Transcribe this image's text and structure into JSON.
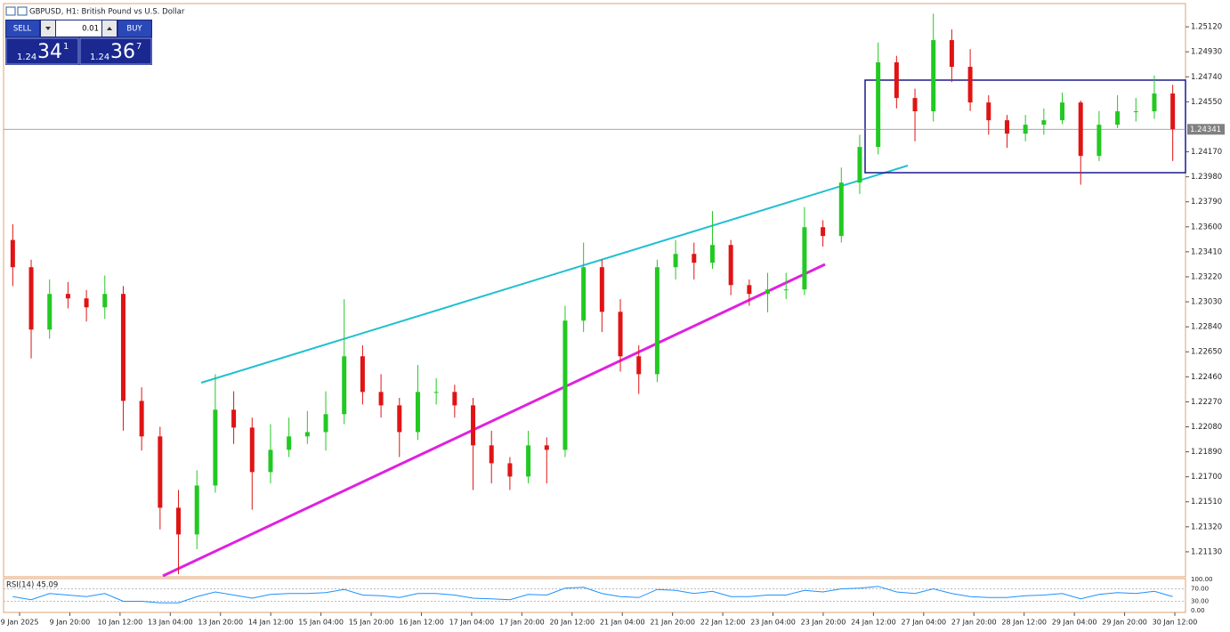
{
  "title": "GBPUSD, H1:  British Pound vs U.S. Dollar",
  "trade_panel": {
    "sell_label": "SELL",
    "buy_label": "BUY",
    "lot": "0.01",
    "sell_price": {
      "big": "1.24",
      "pips": "34",
      "frac": "1"
    },
    "buy_price": {
      "big": "1.24",
      "pips": "36",
      "frac": "7"
    }
  },
  "chart_data": {
    "type": "candlestick",
    "up_color": "#22c922",
    "down_color": "#e01414",
    "open": [
      1.235,
      1.23293,
      1.22819,
      1.2309,
      1.23056,
      1.22988,
      1.2309,
      1.22277,
      1.22007,
      1.21465,
      1.21262,
      1.21634,
      1.2221,
      1.22074,
      1.21736,
      1.21905,
      1.22007,
      1.2204,
      1.22176,
      1.22616,
      1.22345,
      1.22243,
      1.2204,
      1.22345,
      1.22345,
      1.22243,
      1.21939,
      1.21803,
      1.21702,
      1.21939,
      1.21905,
      1.22887,
      1.23293,
      1.22954,
      1.22616,
      1.2248,
      1.23293,
      1.23394,
      1.23327,
      1.23462,
      1.23157,
      1.2309,
      1.23124,
      1.23124,
      1.23597,
      1.2353,
      1.23936,
      1.24207,
      1.2485,
      1.24579,
      1.24478,
      1.25019,
      1.24816,
      1.24545,
      1.2441,
      1.24308,
      1.24376,
      1.2441,
      1.24545,
      1.24139,
      1.24376,
      1.24478,
      1.24478,
      1.24613
    ],
    "high": [
      1.2362,
      1.2335,
      1.232,
      1.2318,
      1.2312,
      1.2323,
      1.2315,
      1.2238,
      1.2208,
      1.216,
      1.2175,
      1.2248,
      1.2235,
      1.2215,
      1.221,
      1.2215,
      1.222,
      1.2235,
      1.2305,
      1.227,
      1.2248,
      1.223,
      1.2255,
      1.2245,
      1.224,
      1.223,
      1.2205,
      1.2185,
      1.2205,
      1.22,
      1.23,
      1.2348,
      1.2335,
      1.2305,
      1.227,
      1.2335,
      1.235,
      1.2348,
      1.2372,
      1.235,
      1.232,
      1.2325,
      1.2325,
      1.2375,
      1.2365,
      1.2405,
      1.243,
      1.25,
      1.249,
      1.2465,
      1.2522,
      1.251,
      1.2495,
      1.246,
      1.2445,
      1.2445,
      1.245,
      1.2462,
      1.2456,
      1.2448,
      1.246,
      1.2458,
      1.2475,
      1.2468
    ],
    "low": [
      1.2315,
      1.226,
      1.2275,
      1.2298,
      1.2288,
      1.229,
      1.2205,
      1.219,
      1.213,
      1.2096,
      1.2115,
      1.2158,
      1.2195,
      1.2145,
      1.2165,
      1.2185,
      1.2195,
      1.219,
      1.221,
      1.2225,
      1.2215,
      1.2185,
      1.2198,
      1.2225,
      1.2215,
      1.216,
      1.2165,
      1.216,
      1.2165,
      1.2165,
      1.2185,
      1.228,
      1.228,
      1.225,
      1.2233,
      1.2242,
      1.232,
      1.232,
      1.2328,
      1.2308,
      1.23,
      1.2295,
      1.2305,
      1.2308,
      1.2345,
      1.2348,
      1.2385,
      1.2415,
      1.245,
      1.2425,
      1.244,
      1.247,
      1.2448,
      1.243,
      1.242,
      1.2425,
      1.243,
      1.2438,
      1.2392,
      1.241,
      1.2435,
      1.244,
      1.2442,
      1.241
    ],
    "close": [
      1.23293,
      1.22819,
      1.2309,
      1.23056,
      1.22988,
      1.2309,
      1.22277,
      1.22007,
      1.21465,
      1.21262,
      1.21634,
      1.2221,
      1.22074,
      1.21736,
      1.21905,
      1.22007,
      1.2204,
      1.22176,
      1.22616,
      1.22345,
      1.22243,
      1.2204,
      1.22345,
      1.22345,
      1.22243,
      1.21939,
      1.21803,
      1.21702,
      1.21939,
      1.21905,
      1.22887,
      1.23293,
      1.22954,
      1.22616,
      1.2248,
      1.23293,
      1.23394,
      1.23327,
      1.23462,
      1.23157,
      1.2309,
      1.23124,
      1.23124,
      1.23597,
      1.2353,
      1.23936,
      1.24207,
      1.2485,
      1.24579,
      1.24478,
      1.25019,
      1.24816,
      1.24545,
      1.2441,
      1.24308,
      1.24376,
      1.2441,
      1.24545,
      1.24139,
      1.24376,
      1.24478,
      1.24478,
      1.24613,
      1.24341
    ],
    "current_price": 1.24341,
    "ylim": [
      1.2094,
      1.2529
    ],
    "yticks": [
      {
        "value": 1.2512,
        "label": "1.25120"
      },
      {
        "value": 1.2493,
        "label": "1.24930"
      },
      {
        "value": 1.2474,
        "label": "1.24740"
      },
      {
        "value": 1.2455,
        "label": "1.24550"
      },
      {
        "value": 1.2417,
        "label": "1.24170"
      },
      {
        "value": 1.2398,
        "label": "1.23980"
      },
      {
        "value": 1.2379,
        "label": "1.23790"
      },
      {
        "value": 1.236,
        "label": "1.23600"
      },
      {
        "value": 1.2341,
        "label": "1.23410"
      },
      {
        "value": 1.2322,
        "label": "1.23220"
      },
      {
        "value": 1.2303,
        "label": "1.23030"
      },
      {
        "value": 1.2284,
        "label": "1.22840"
      },
      {
        "value": 1.2265,
        "label": "1.22650"
      },
      {
        "value": 1.2246,
        "label": "1.22460"
      },
      {
        "value": 1.2227,
        "label": "1.22270"
      },
      {
        "value": 1.2208,
        "label": "1.22080"
      },
      {
        "value": 1.2189,
        "label": "1.21890"
      },
      {
        "value": 1.217,
        "label": "1.21700"
      },
      {
        "value": 1.2151,
        "label": "1.21510"
      },
      {
        "value": 1.2132,
        "label": "1.21320"
      },
      {
        "value": 1.2113,
        "label": "1.21130"
      }
    ],
    "time_labels": [
      "9 Jan 2025",
      "9 Jan 20:00",
      "10 Jan 12:00",
      "13 Jan 04:00",
      "13 Jan 20:00",
      "14 Jan 12:00",
      "15 Jan 04:00",
      "15 Jan 20:00",
      "16 Jan 12:00",
      "17 Jan 04:00",
      "17 Jan 20:00",
      "20 Jan 12:00",
      "21 Jan 04:00",
      "21 Jan 20:00",
      "22 Jan 12:00",
      "23 Jan 04:00",
      "23 Jan 20:00",
      "24 Jan 12:00",
      "27 Jan 04:00",
      "27 Jan 20:00",
      "28 Jan 12:00",
      "29 Jan 04:00",
      "29 Jan 20:00",
      "30 Jan 12:00"
    ],
    "rsi": {
      "label": "RSI(14) 45.09",
      "color": "#1e90ff",
      "values": [
        45,
        35,
        55,
        50,
        45,
        55,
        30,
        30,
        25,
        25,
        45,
        60,
        50,
        40,
        52,
        55,
        55,
        58,
        68,
        50,
        48,
        42,
        55,
        55,
        50,
        40,
        38,
        35,
        52,
        50,
        72,
        75,
        55,
        45,
        42,
        68,
        65,
        55,
        62,
        45,
        45,
        50,
        50,
        65,
        60,
        70,
        72,
        78,
        60,
        55,
        70,
        55,
        45,
        42,
        42,
        48,
        50,
        55,
        38,
        52,
        58,
        55,
        62,
        45.09
      ],
      "ylim": [
        0,
        100
      ],
      "yticks": [
        {
          "value": 100,
          "label": "100.00"
        },
        {
          "value": 70,
          "label": "70.00"
        },
        {
          "value": 30,
          "label": "30.00"
        },
        {
          "value": 0,
          "label": "0.00"
        }
      ]
    }
  }
}
